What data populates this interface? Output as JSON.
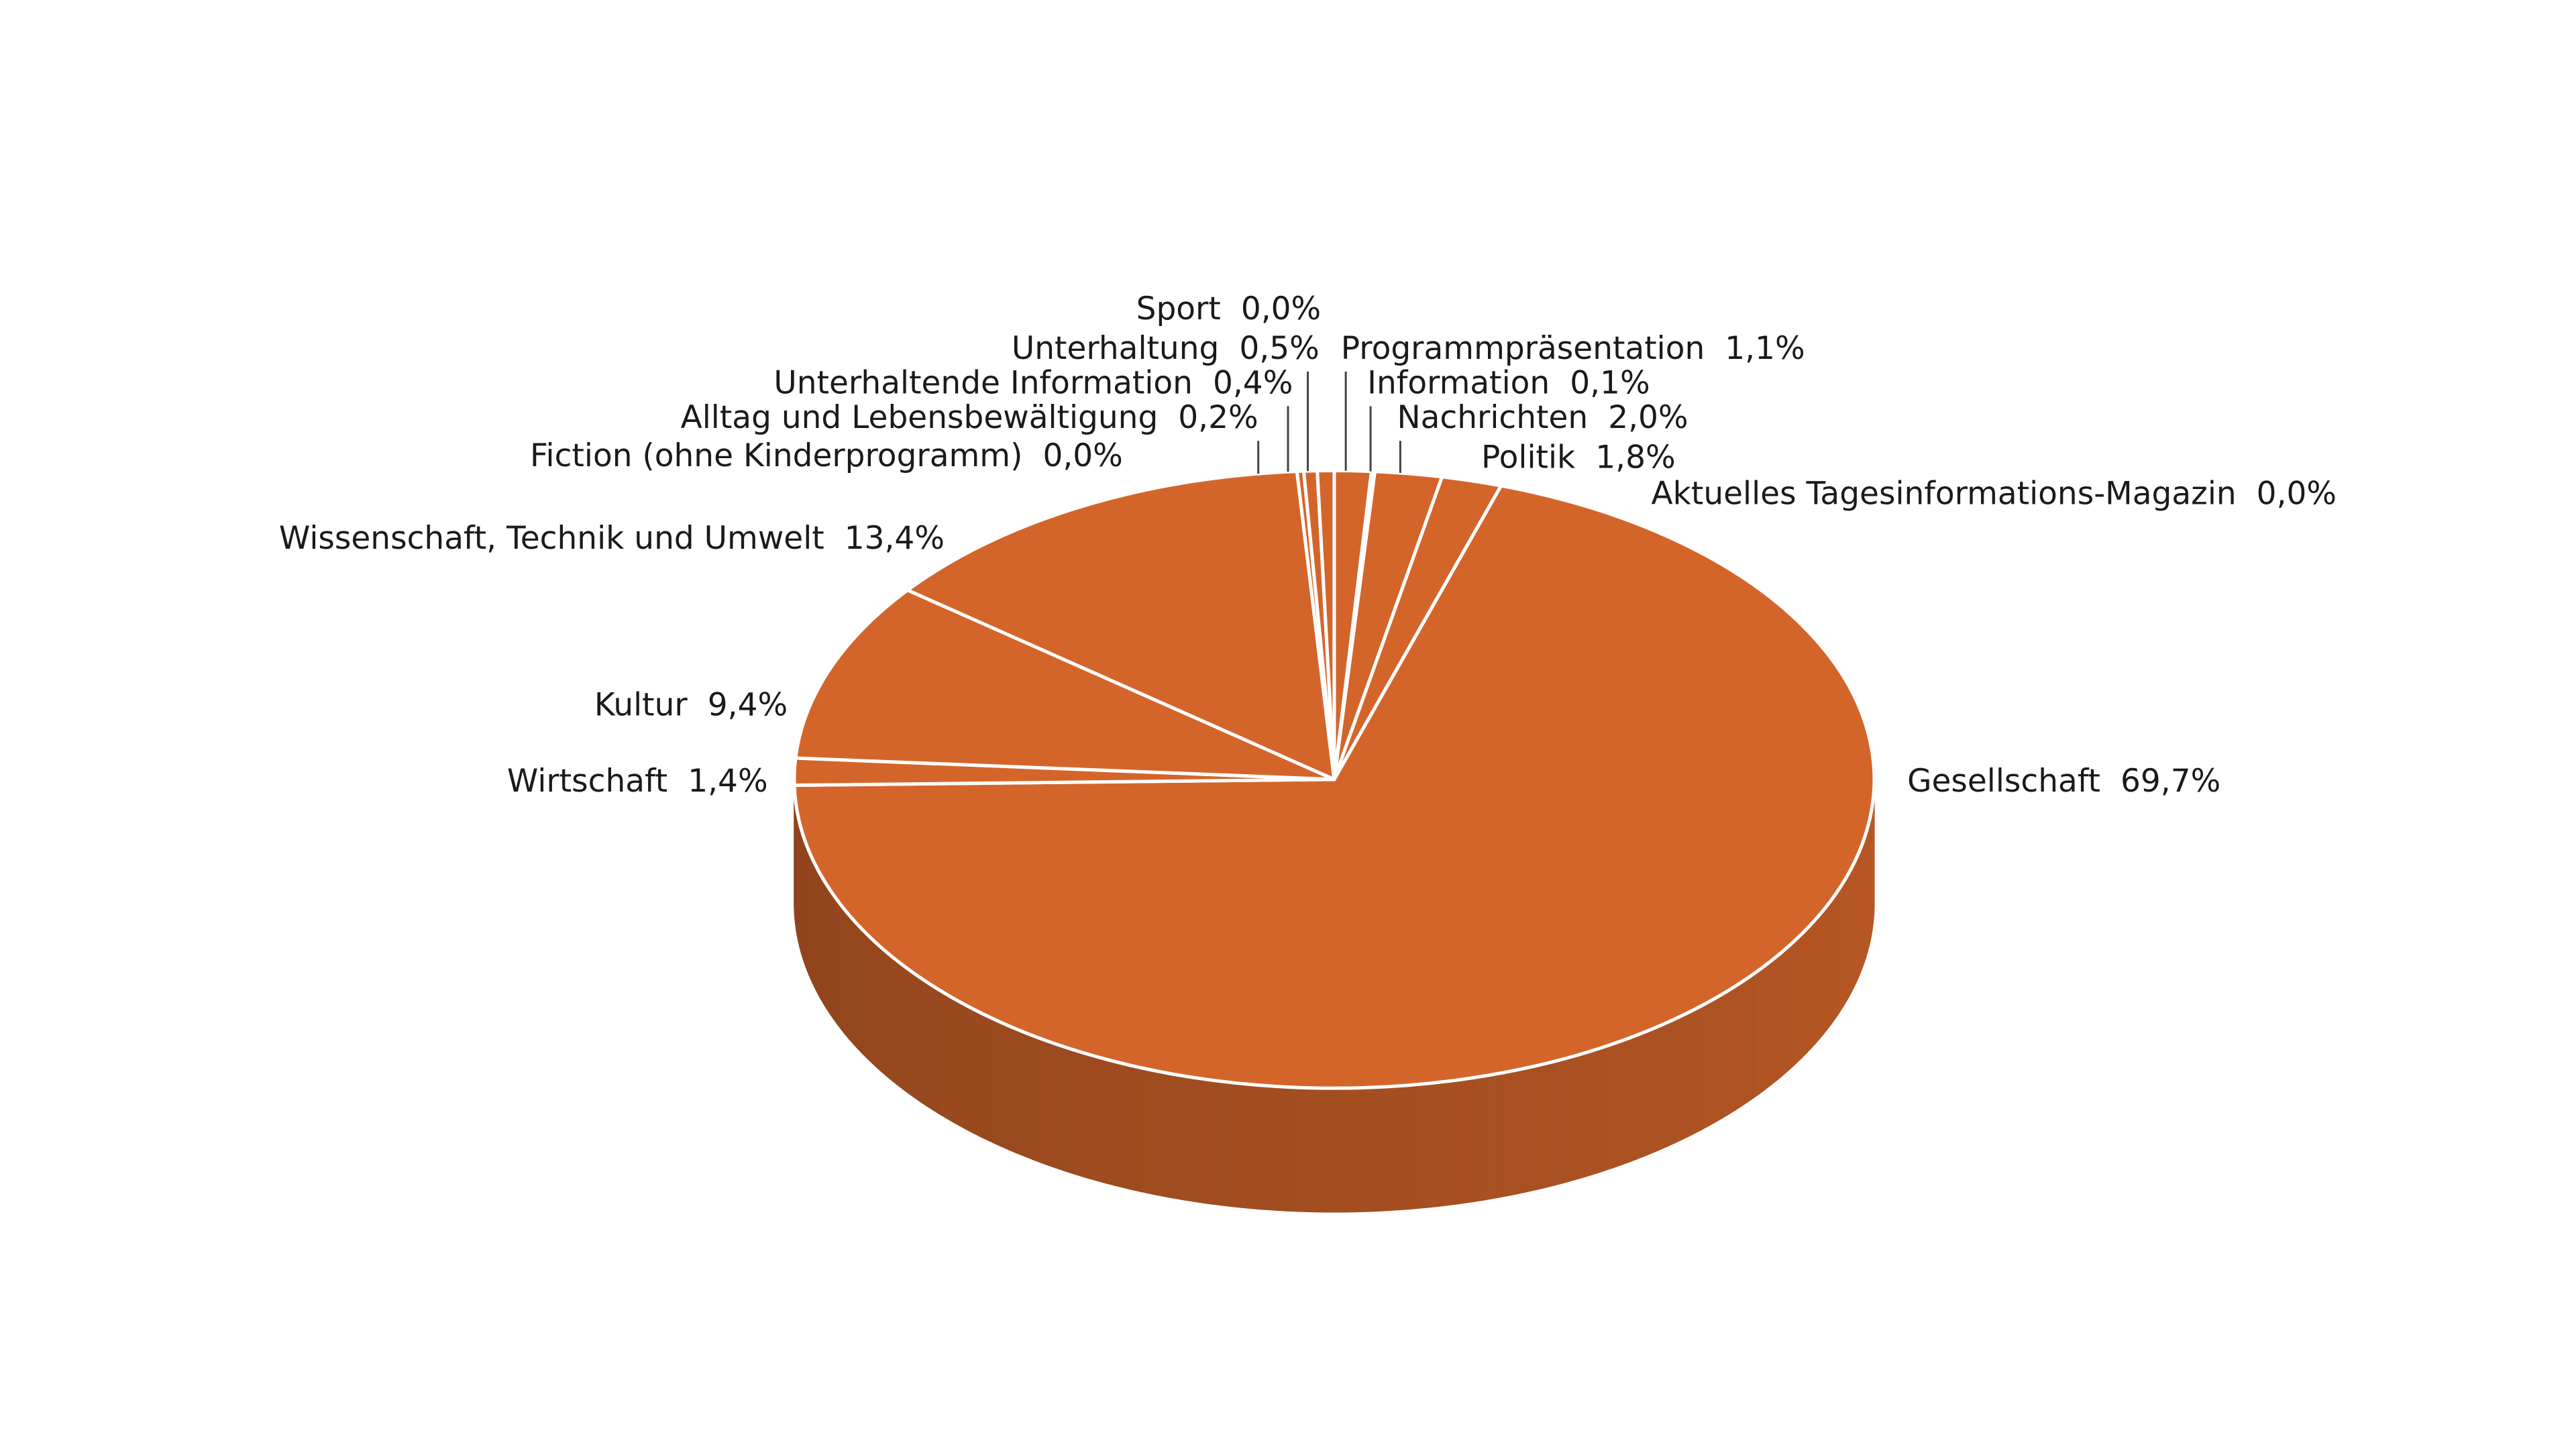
{
  "chart_data": {
    "type": "pie3d",
    "categories": [
      "Programmpräsentation",
      "Information",
      "Nachrichten",
      "Politik",
      "Aktuelles Tagesinformations-Magazin",
      "Gesellschaft",
      "Wirtschaft",
      "Kultur",
      "Wissenschaft, Technik und Umwelt",
      "Fiction (ohne Kinderprogramm)",
      "Alltag und Lebensbewältigung",
      "Unterhaltende Information",
      "Unterhaltung",
      "Sport"
    ],
    "values": [
      1.1,
      0.1,
      2.0,
      1.8,
      0.0,
      69.7,
      1.4,
      9.4,
      13.4,
      0.0,
      0.2,
      0.4,
      0.5,
      0.0
    ],
    "value_labels": [
      "1,1%",
      "0,1%",
      "2,0%",
      "1,8%",
      "0,0%",
      "69,7%",
      "1,4%",
      "9,4%",
      "13,4%",
      "0,0%",
      "0,2%",
      "0,4%",
      "0,5%",
      "0,0%"
    ],
    "color": "#d4652a"
  }
}
